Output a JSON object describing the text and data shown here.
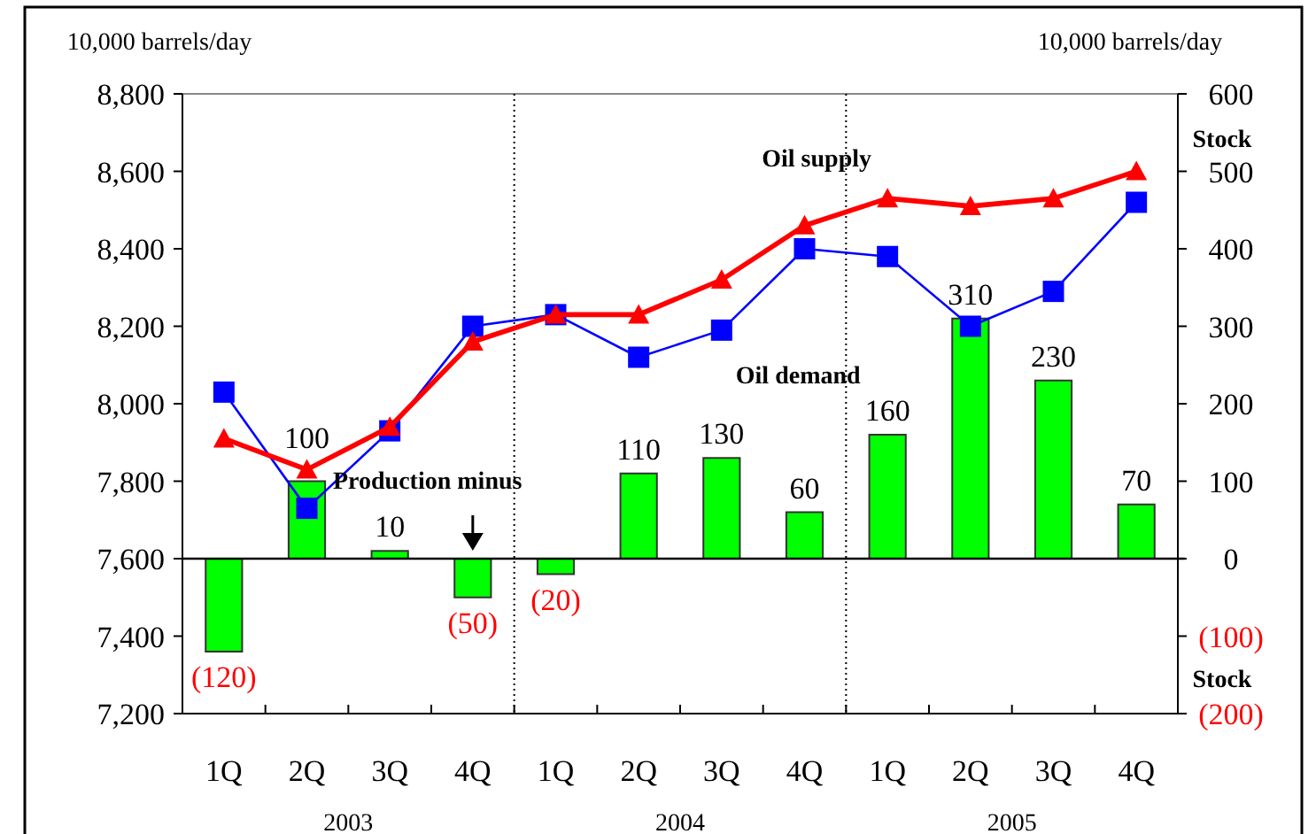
{
  "chart_data": {
    "type": "bar",
    "ylabel": "10,000 barrels/day",
    "y2label": "10,000 barrels/day",
    "categories": [
      "1Q",
      "2Q",
      "3Q",
      "4Q",
      "1Q",
      "2Q",
      "3Q",
      "4Q",
      "1Q",
      "2Q",
      "3Q",
      "4Q"
    ],
    "series": [
      {
        "axis": "y2",
        "color": "#00ff00",
        "values": [
          -120,
          100,
          10,
          -50,
          -20,
          110,
          130,
          60,
          160,
          310,
          230,
          70
        ],
        "value_labels": [
          "(120)",
          "100",
          "10",
          "(50)",
          "(20)",
          "110",
          "130",
          "60",
          "160",
          "310",
          "230",
          "70"
        ]
      },
      {
        "type": "line",
        "name": "Oil demand",
        "color": "#0000ff",
        "marker": "square",
        "values": [
          8030,
          7730,
          7930,
          8200,
          8230,
          8120,
          8190,
          8400,
          8380,
          8200,
          8290,
          8520
        ]
      },
      {
        "type": "line",
        "name": "Oil supply",
        "color": "#ff0000",
        "marker": "triangle",
        "values": [
          7910,
          7830,
          7940,
          8160,
          8230,
          8230,
          8320,
          8460,
          8530,
          8510,
          8530,
          8600
        ]
      }
    ],
    "ylim": [
      7200,
      8800
    ],
    "yticks": [
      {
        "value": 7200,
        "label": "7,200"
      },
      {
        "value": 7400,
        "label": "7,400"
      },
      {
        "value": 7600,
        "label": "7,600"
      },
      {
        "value": 7800,
        "label": "7,800"
      },
      {
        "value": 8000,
        "label": "8,000"
      },
      {
        "value": 8200,
        "label": "8,200"
      },
      {
        "value": 8400,
        "label": "8,400"
      },
      {
        "value": 8600,
        "label": "8,600"
      },
      {
        "value": 8800,
        "label": "8,800"
      }
    ],
    "y2lim": [
      -200,
      600
    ],
    "y2ticks": [
      {
        "value": -200,
        "label": "(200)"
      },
      {
        "value": -100,
        "label": "(100)"
      },
      0,
      100,
      200,
      300,
      400,
      500,
      600
    ],
    "ref_lines": [
      {
        "axis": "y2",
        "value": 0,
        "color": "#000000"
      }
    ],
    "annotations": [
      "Production minus",
      "Stock",
      "Stock",
      "2003",
      "2004",
      "2005"
    ],
    "grid": false,
    "legend": false
  }
}
